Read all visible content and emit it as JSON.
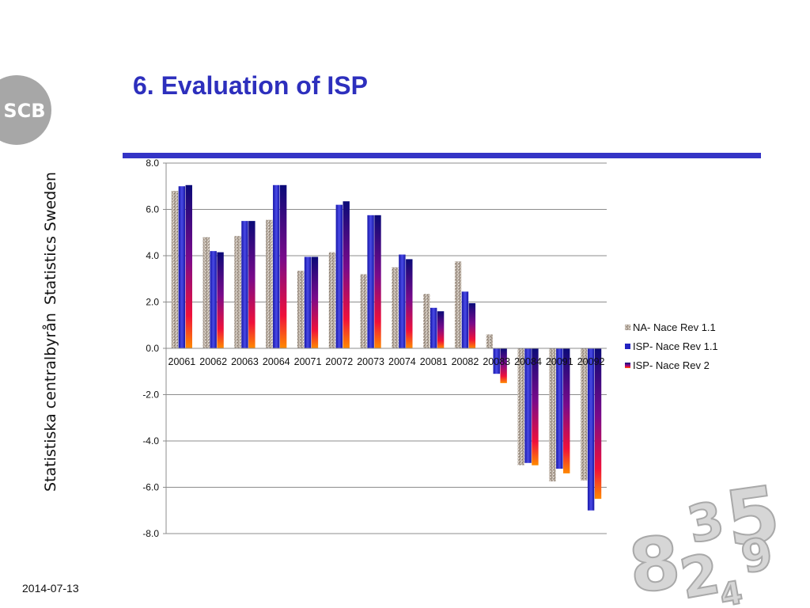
{
  "slide": {
    "title": "6. Evaluation of ISP",
    "side_text_1": "Statistics Sweden",
    "side_text_2": "Statistiska centralbyrån",
    "date": "2014-07-13",
    "logo_text": "SCB"
  },
  "colors": {
    "title": "#2d2fbd",
    "rule": "#3434c6",
    "logo": "#a7a7a7"
  },
  "icons": {
    "logo": "scb-logo-icon",
    "decoration": "numbers-decoration-icon"
  },
  "chart_data": {
    "type": "bar",
    "title": "",
    "xlabel": "",
    "ylabel": "",
    "ylim": [
      -8,
      8
    ],
    "yticks": [
      "8.0",
      "6.0",
      "4.0",
      "2.0",
      "0.0",
      "-2.0",
      "-4.0",
      "-6.0",
      "-8.0"
    ],
    "categories": [
      "20061",
      "20062",
      "20063",
      "20064",
      "20071",
      "20072",
      "20073",
      "20074",
      "20081",
      "20082",
      "20083",
      "20084",
      "20091",
      "20092"
    ],
    "series": [
      {
        "name": "NA- Nace Rev 1.1",
        "values": [
          6.8,
          4.8,
          4.85,
          5.55,
          3.35,
          4.15,
          3.2,
          3.5,
          2.35,
          3.75,
          0.6,
          -5.05,
          -5.75,
          -5.7
        ]
      },
      {
        "name": "ISP- Nace Rev 1.1",
        "values": [
          7.0,
          4.2,
          5.5,
          7.05,
          3.95,
          6.2,
          5.75,
          4.05,
          1.75,
          2.45,
          -1.1,
          -4.95,
          -5.2,
          -7.0
        ]
      },
      {
        "name": "ISP- Nace Rev 2",
        "values": [
          7.05,
          4.15,
          5.5,
          7.05,
          3.95,
          6.35,
          5.75,
          3.85,
          1.6,
          1.95,
          -1.5,
          -5.05,
          -5.4,
          -6.5
        ]
      }
    ],
    "legend_position": "right",
    "grid": true
  }
}
